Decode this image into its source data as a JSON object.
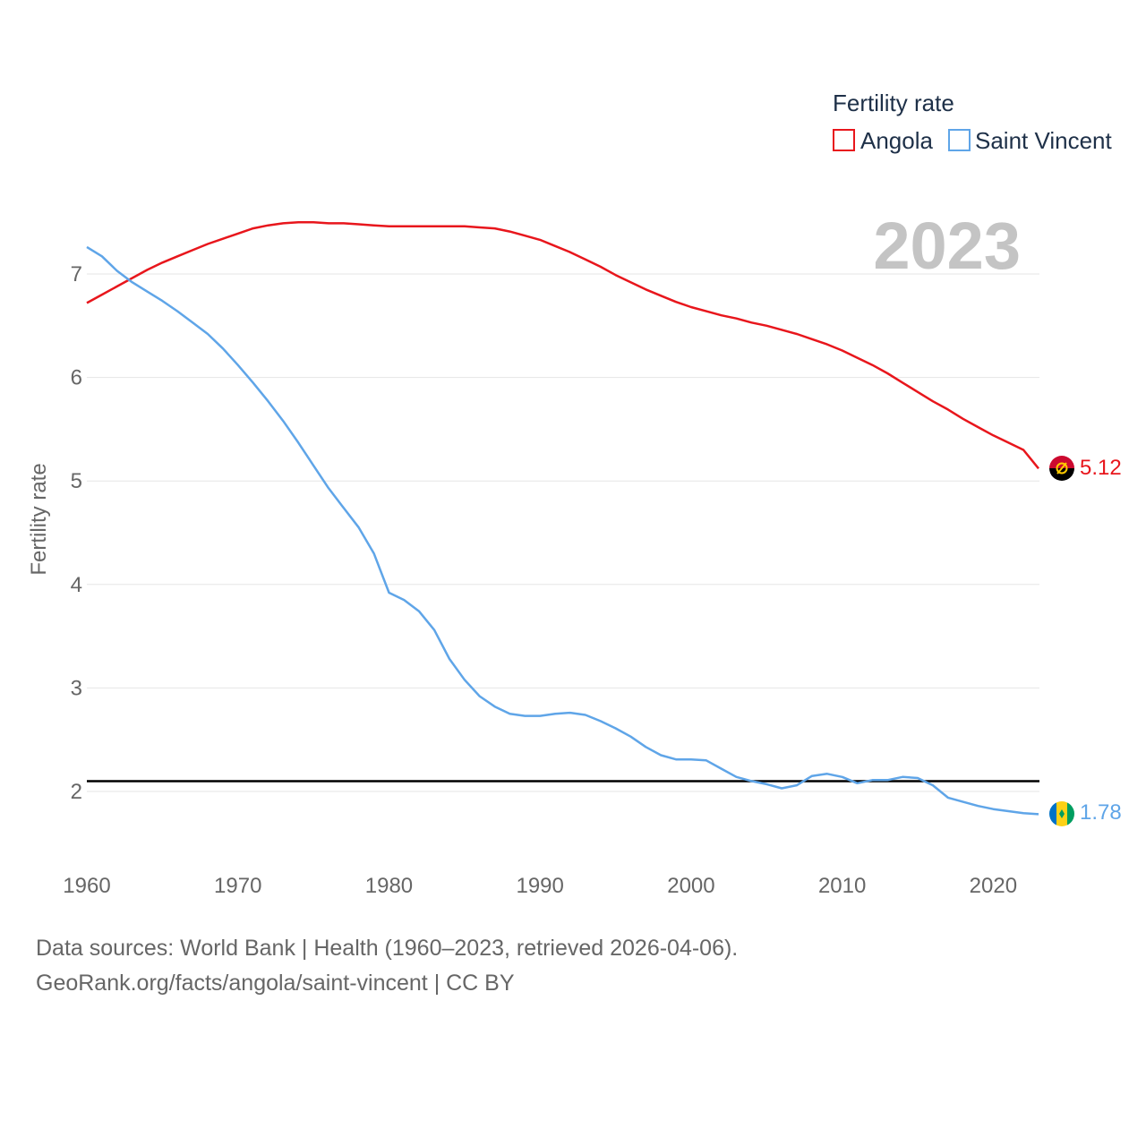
{
  "chart_data": {
    "type": "line",
    "title": "Fertility rate",
    "ylabel": "Fertility rate",
    "xlabel": "",
    "xlim": [
      1960,
      2023
    ],
    "ylim": [
      1.5,
      7.6
    ],
    "y_ticks": [
      2,
      3,
      4,
      5,
      6,
      7
    ],
    "x_ticks": [
      1960,
      1970,
      1980,
      1990,
      2000,
      2010,
      2020
    ],
    "reference_line": 2.1,
    "current_year": "2023",
    "legend_title": "Fertility rate",
    "legend_position": "top-right",
    "x": [
      1960,
      1961,
      1962,
      1963,
      1964,
      1965,
      1966,
      1967,
      1968,
      1969,
      1970,
      1971,
      1972,
      1973,
      1974,
      1975,
      1976,
      1977,
      1978,
      1979,
      1980,
      1981,
      1982,
      1983,
      1984,
      1985,
      1986,
      1987,
      1988,
      1989,
      1990,
      1991,
      1992,
      1993,
      1994,
      1995,
      1996,
      1997,
      1998,
      1999,
      2000,
      2001,
      2002,
      2003,
      2004,
      2005,
      2006,
      2007,
      2008,
      2009,
      2010,
      2011,
      2012,
      2013,
      2014,
      2015,
      2016,
      2017,
      2018,
      2019,
      2020,
      2021,
      2022,
      2023
    ],
    "series": [
      {
        "name": "Angola",
        "color": "#e8161c",
        "end_label": "5.12",
        "flag": "angola-flag",
        "values": [
          6.72,
          6.8,
          6.88,
          6.96,
          7.04,
          7.11,
          7.17,
          7.23,
          7.29,
          7.34,
          7.39,
          7.44,
          7.47,
          7.49,
          7.5,
          7.5,
          7.49,
          7.49,
          7.48,
          7.47,
          7.46,
          7.46,
          7.46,
          7.46,
          7.46,
          7.46,
          7.45,
          7.44,
          7.41,
          7.37,
          7.33,
          7.27,
          7.21,
          7.14,
          7.07,
          6.99,
          6.92,
          6.85,
          6.79,
          6.73,
          6.68,
          6.64,
          6.6,
          6.57,
          6.53,
          6.5,
          6.46,
          6.42,
          6.37,
          6.32,
          6.26,
          6.19,
          6.12,
          6.04,
          5.95,
          5.86,
          5.77,
          5.69,
          5.6,
          5.52,
          5.44,
          5.37,
          5.3,
          5.12
        ]
      },
      {
        "name": "Saint Vincent",
        "color": "#5fa5e8",
        "end_label": "1.78",
        "flag": "saint-vincent-flag",
        "values": [
          7.26,
          7.17,
          7.03,
          6.92,
          6.83,
          6.74,
          6.64,
          6.53,
          6.42,
          6.28,
          6.12,
          5.95,
          5.77,
          5.58,
          5.37,
          5.15,
          4.93,
          4.74,
          4.55,
          4.3,
          3.92,
          3.85,
          3.74,
          3.56,
          3.28,
          3.08,
          2.92,
          2.82,
          2.75,
          2.73,
          2.73,
          2.75,
          2.76,
          2.74,
          2.68,
          2.61,
          2.53,
          2.43,
          2.35,
          2.31,
          2.31,
          2.3,
          2.22,
          2.14,
          2.1,
          2.07,
          2.03,
          2.06,
          2.15,
          2.17,
          2.14,
          2.08,
          2.11,
          2.11,
          2.14,
          2.13,
          2.06,
          1.94,
          1.9,
          1.86,
          1.83,
          1.81,
          1.79,
          1.78
        ]
      }
    ]
  },
  "footer": {
    "line1": "Data sources: World Bank | Health (1960–2023, retrieved 2026-04-06).",
    "line2": "GeoRank.org/facts/angola/saint-vincent | CC BY"
  }
}
